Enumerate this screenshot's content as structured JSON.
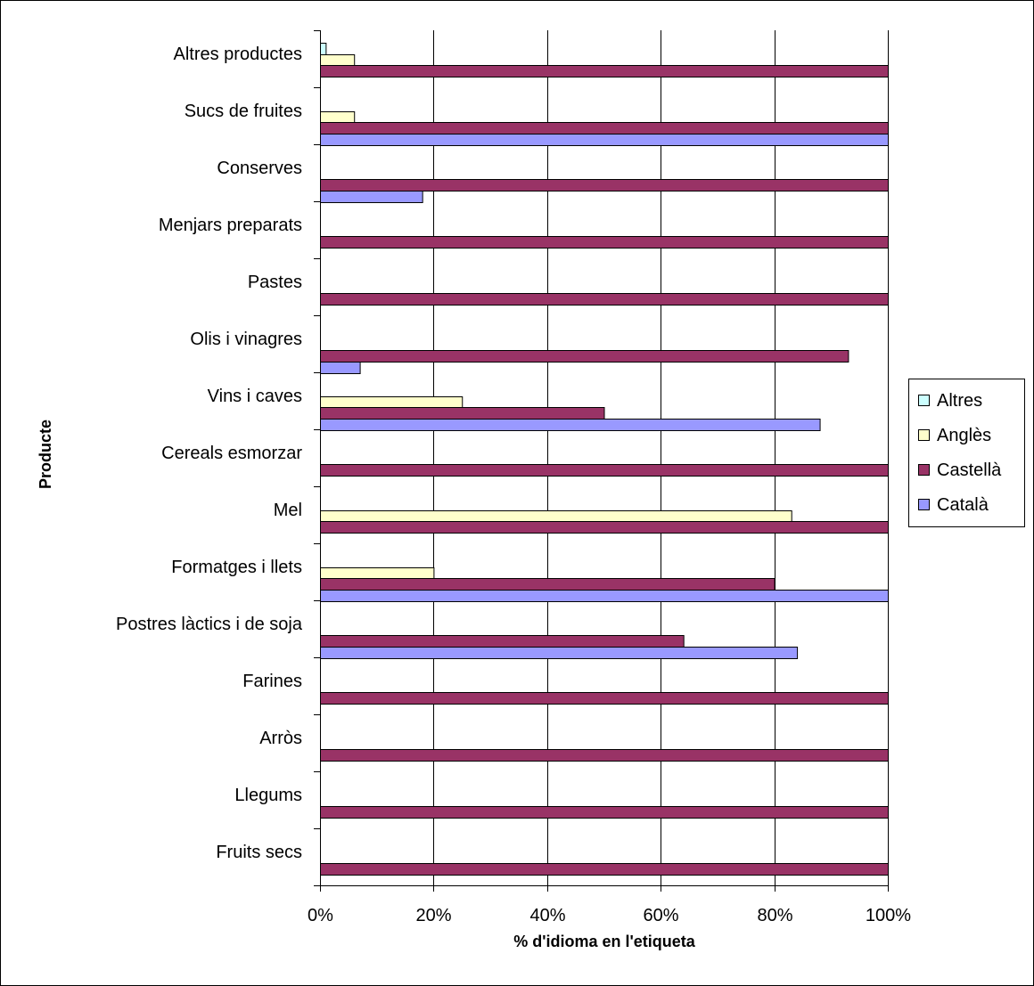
{
  "chart_data": {
    "type": "bar",
    "orientation": "horizontal",
    "categories": [
      "Altres productes",
      "Sucs de fruites",
      "Conserves",
      "Menjars preparats",
      "Pastes",
      "Olis i vinagres",
      "Vins i caves",
      "Cereals esmorzar",
      "Mel",
      "Formatges i llets",
      "Postres làctics i de soja",
      "Farines",
      "Arròs",
      "Llegums",
      "Fruits secs"
    ],
    "series": [
      {
        "name": "Altres",
        "color": "#ccffff",
        "values": [
          1,
          0,
          0,
          0,
          0,
          0,
          0,
          0,
          0,
          0,
          0,
          0,
          0,
          0,
          0
        ]
      },
      {
        "name": "Anglès",
        "color": "#ffffcc",
        "values": [
          6,
          6,
          0,
          0,
          0,
          0,
          25,
          0,
          83,
          20,
          0,
          0,
          0,
          0,
          0
        ]
      },
      {
        "name": "Castellà",
        "color": "#993366",
        "values": [
          100,
          100,
          100,
          100,
          100,
          93,
          50,
          100,
          100,
          80,
          64,
          100,
          100,
          100,
          100
        ]
      },
      {
        "name": "Català",
        "color": "#9999ff",
        "values": [
          0,
          100,
          18,
          0,
          0,
          7,
          88,
          0,
          0,
          100,
          84,
          0,
          0,
          0,
          0
        ]
      }
    ],
    "xlabel": "% d'idioma en l'etiqueta",
    "ylabel": "Producte",
    "xlim": [
      0,
      100
    ],
    "xticks": [
      "0%",
      "20%",
      "40%",
      "60%",
      "80%",
      "100%"
    ],
    "grid": true,
    "legend_position": "right"
  }
}
